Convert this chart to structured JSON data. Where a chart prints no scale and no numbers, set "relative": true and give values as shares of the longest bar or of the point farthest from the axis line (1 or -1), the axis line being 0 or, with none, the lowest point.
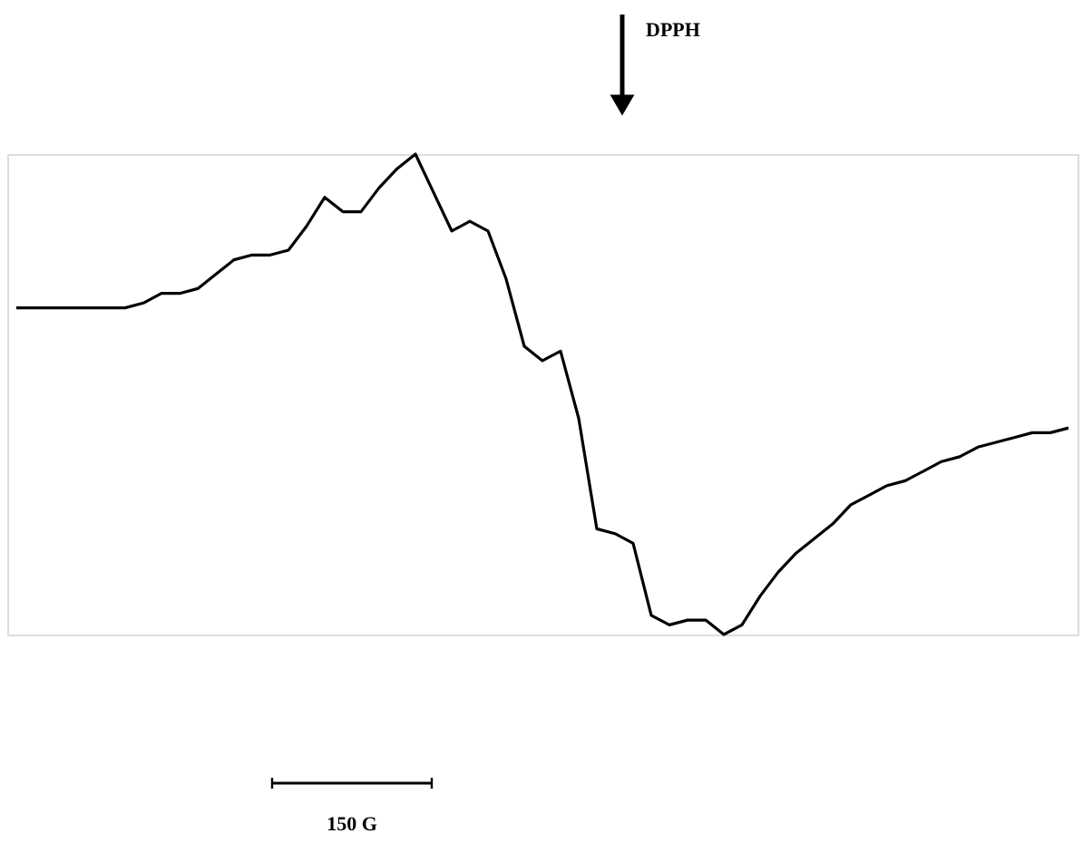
{
  "chart_data": {
    "type": "line",
    "relative": true,
    "color": "#000000",
    "categories": [
      null,
      null,
      null,
      null,
      null,
      null,
      null,
      null,
      null,
      null,
      null,
      null,
      null,
      null,
      null,
      null,
      null,
      null,
      null,
      null,
      null,
      null,
      null,
      null,
      null,
      null,
      null,
      null,
      null,
      null,
      null,
      null,
      null,
      null,
      null,
      null,
      null,
      null,
      null,
      null,
      null,
      null,
      null,
      null,
      null,
      null,
      null,
      null,
      null,
      null,
      null,
      null,
      null,
      null,
      null,
      null,
      null,
      null,
      null
    ],
    "values": [
      0.68,
      0.68,
      0.68,
      0.68,
      0.68,
      0.68,
      0.68,
      0.69,
      0.71,
      0.71,
      0.72,
      0.75,
      0.78,
      0.79,
      0.79,
      0.8,
      0.85,
      0.91,
      0.88,
      0.88,
      0.93,
      0.97,
      1.0,
      0.92,
      0.84,
      0.86,
      0.84,
      0.74,
      0.6,
      0.57,
      0.59,
      0.45,
      0.22,
      0.21,
      0.19,
      0.04,
      0.02,
      0.03,
      0.03,
      0.0,
      0.02,
      0.08,
      0.13,
      0.17,
      0.2,
      0.23,
      0.27,
      0.29,
      0.31,
      0.32,
      0.34,
      0.36,
      0.37,
      0.39,
      0.4,
      0.41,
      0.42,
      0.42,
      0.43
    ],
    "annotations": [
      "DPPH",
      "150 G"
    ]
  }
}
